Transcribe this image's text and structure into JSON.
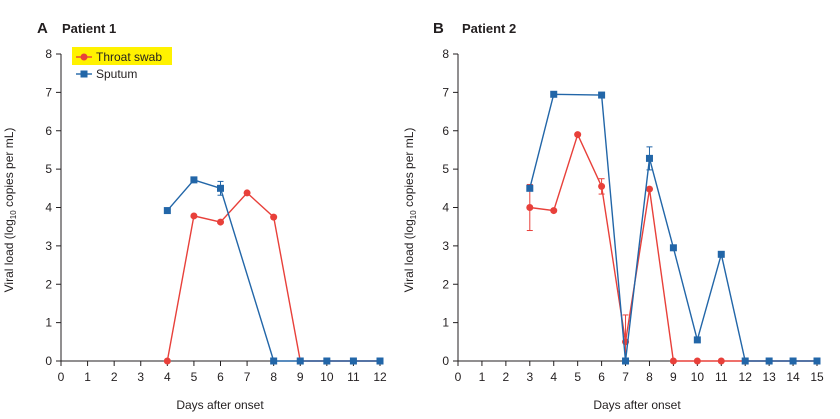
{
  "chart_data": [
    {
      "type": "line",
      "panel": "A",
      "title": "Patient 1",
      "xlabel": "Days after onset",
      "ylabel": "Viral load (log10 copies per mL)",
      "xlim": [
        0,
        12
      ],
      "ylim": [
        0,
        8
      ],
      "x_ticks": [
        "0",
        "1",
        "2",
        "3",
        "4",
        "5",
        "6",
        "7",
        "8",
        "9",
        "10",
        "11",
        "12"
      ],
      "y_ticks": [
        "0",
        "1",
        "2",
        "3",
        "4",
        "5",
        "6",
        "7",
        "8"
      ],
      "grid": false,
      "legend": {
        "placement": "top-left",
        "highlight_color": "#fff200"
      },
      "series": [
        {
          "name": "Throat swab",
          "color": "#e8403a",
          "marker": "circle",
          "x": [
            4,
            5,
            6,
            7,
            8,
            9,
            10,
            11,
            12
          ],
          "y": [
            0,
            3.78,
            3.62,
            4.38,
            3.75,
            0,
            0,
            0,
            0
          ]
        },
        {
          "name": "Sputum",
          "color": "#2266a8",
          "marker": "square",
          "x": [
            4,
            5,
            6,
            8,
            9,
            10,
            11,
            12
          ],
          "y": [
            3.92,
            4.72,
            4.5,
            0,
            0,
            0,
            0,
            0
          ],
          "error": [
            0,
            0,
            0.18,
            0,
            0,
            0,
            0,
            0
          ]
        }
      ]
    },
    {
      "type": "line",
      "panel": "B",
      "title": "Patient 2",
      "xlabel": "Days after onset",
      "ylabel": "Viral load (log10 copies per mL)",
      "xlim": [
        0,
        15
      ],
      "ylim": [
        0,
        8
      ],
      "x_ticks": [
        "0",
        "1",
        "2",
        "3",
        "4",
        "5",
        "6",
        "7",
        "8",
        "9",
        "10",
        "11",
        "12",
        "13",
        "14",
        "15"
      ],
      "y_ticks": [
        "0",
        "1",
        "2",
        "3",
        "4",
        "5",
        "6",
        "7",
        "8"
      ],
      "grid": false,
      "series": [
        {
          "name": "Throat swab",
          "color": "#e8403a",
          "marker": "circle",
          "x": [
            3,
            4,
            5,
            6,
            7,
            8,
            9,
            10,
            11,
            12,
            13,
            14,
            15
          ],
          "y": [
            4.0,
            3.92,
            5.9,
            4.55,
            0.5,
            4.48,
            0,
            0,
            0,
            0,
            0,
            0,
            0
          ],
          "error": [
            0.6,
            0,
            0,
            0.2,
            0.7,
            0,
            0,
            0,
            0,
            0,
            0,
            0,
            0
          ]
        },
        {
          "name": "Sputum",
          "color": "#2266a8",
          "marker": "square",
          "x": [
            3,
            4,
            6,
            7,
            8,
            9,
            10,
            11,
            12,
            13,
            14,
            15
          ],
          "y": [
            4.5,
            6.95,
            6.93,
            0,
            5.28,
            2.95,
            0.55,
            2.78,
            0,
            0,
            0,
            0
          ],
          "error": [
            0,
            0,
            0,
            0,
            0.3,
            0,
            0,
            0,
            0,
            0,
            0,
            0
          ]
        }
      ]
    }
  ]
}
